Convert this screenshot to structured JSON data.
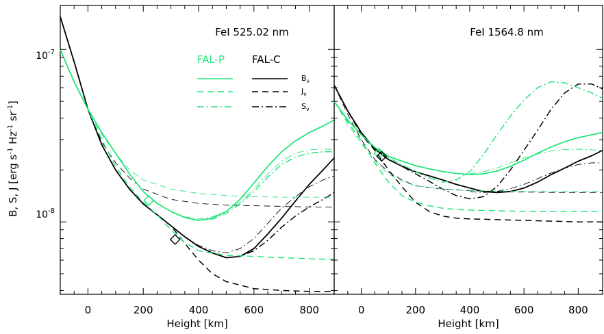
{
  "colors": {
    "fal_p": "#22e67a",
    "fal_c": "#000000"
  },
  "figure": {
    "ylabel_main": "B, S, J [erg s",
    "ylabel_exp1": "-1",
    "ylabel_mid": " Hz",
    "ylabel_exp2": "-1",
    "ylabel_mid2": " sr",
    "ylabel_exp3": "-1",
    "ylabel_end": "]"
  },
  "legend": {
    "fal_p": "FAL-P",
    "fal_c": "FAL-C",
    "b_nu": "B",
    "j_nu": "J",
    "s_nu": "S",
    "nu": "ν"
  },
  "chart_data": [
    {
      "type": "line",
      "title": "FeI 525.02 nm",
      "xlabel": "Height [km]",
      "xlim": [
        -100,
        890
      ],
      "xticks": [
        "0",
        "200",
        "400",
        "600",
        "800"
      ],
      "ylog": true,
      "ylim": [
        3.8e-09,
        1.8e-07
      ],
      "yticks": [
        {
          "base": "10",
          "exp": "-8"
        },
        {
          "base": "10",
          "exp": "-7"
        }
      ],
      "series": [
        {
          "name": "FAL-C B_nu",
          "model": "FAL-C",
          "style": "solid",
          "x": [
            -100,
            -50,
            0,
            50,
            100,
            150,
            200,
            250,
            300,
            350,
            400,
            450,
            500,
            550,
            600,
            650,
            700,
            750,
            800,
            850,
            890
          ],
          "y": [
            1.55e-07,
            8.5e-08,
            4.5e-08,
            2.8e-08,
            2e-08,
            1.55e-08,
            1.27e-08,
            1.1e-08,
            9.5e-09,
            8.2e-09,
            7.2e-09,
            6.6e-09,
            6.2e-09,
            6.3e-09,
            7e-09,
            8.5e-09,
            1.05e-08,
            1.32e-08,
            1.65e-08,
            2e-08,
            2.35e-08
          ]
        },
        {
          "name": "FAL-C J_nu thin",
          "model": "FAL-C",
          "style": "dashed-thin",
          "x": [
            -100,
            -50,
            0,
            50,
            100,
            150,
            200,
            300,
            400,
            500,
            600,
            700,
            800,
            890
          ],
          "y": [
            1.55e-07,
            8.5e-08,
            4.5e-08,
            2.9e-08,
            2.2e-08,
            1.8e-08,
            1.55e-08,
            1.35e-08,
            1.28e-08,
            1.25e-08,
            1.24e-08,
            1.23e-08,
            1.22e-08,
            1.22e-08
          ]
        },
        {
          "name": "FAL-C J_nu thick",
          "model": "FAL-C",
          "style": "dashed",
          "x": [
            -100,
            -50,
            0,
            50,
            100,
            150,
            200,
            250,
            300,
            350,
            400,
            450,
            500,
            600,
            700,
            800,
            890
          ],
          "y": [
            1.55e-07,
            8.5e-08,
            4.5e-08,
            2.8e-08,
            2e-08,
            1.55e-08,
            1.27e-08,
            1.1e-08,
            9.5e-09,
            7.5e-09,
            6e-09,
            5e-09,
            4.5e-09,
            4.1e-09,
            4e-09,
            3.95e-09,
            3.95e-09
          ]
        },
        {
          "name": "FAL-C S_nu thin",
          "model": "FAL-C",
          "style": "dashdot-thin",
          "x": [
            350,
            400,
            450,
            500,
            550,
            600,
            650,
            700,
            750,
            800,
            850,
            890
          ],
          "y": [
            8.2e-09,
            7.3e-09,
            6.8e-09,
            6.6e-09,
            7e-09,
            8e-09,
            9.8e-09,
            1.2e-08,
            1.4e-08,
            1.6e-08,
            1.75e-08,
            1.85e-08
          ]
        },
        {
          "name": "FAL-C S_nu thick",
          "model": "FAL-C",
          "style": "dashdot",
          "x": [
            350,
            400,
            450,
            500,
            550,
            600,
            650,
            700,
            750,
            800,
            850,
            890
          ],
          "y": [
            8.2e-09,
            7.2e-09,
            6.6e-09,
            6.2e-09,
            6.3e-09,
            6.8e-09,
            7.8e-09,
            9.3e-09,
            1.08e-08,
            1.22e-08,
            1.35e-08,
            1.48e-08
          ]
        },
        {
          "name": "FAL-P B_nu",
          "model": "FAL-P",
          "style": "solid",
          "x": [
            -100,
            -50,
            0,
            50,
            100,
            150,
            200,
            250,
            300,
            350,
            400,
            450,
            500,
            550,
            600,
            650,
            700,
            750,
            800,
            850,
            890
          ],
          "y": [
            1e-07,
            6.5e-08,
            4.5e-08,
            3.3e-08,
            2.5e-08,
            1.9e-08,
            1.5e-08,
            1.28e-08,
            1.15e-08,
            1.06e-08,
            1.02e-08,
            1.05e-08,
            1.15e-08,
            1.35e-08,
            1.68e-08,
            2.1e-08,
            2.55e-08,
            2.95e-08,
            3.3e-08,
            3.6e-08,
            3.9e-08
          ]
        },
        {
          "name": "FAL-P J_nu thin",
          "model": "FAL-P",
          "style": "dashed-thin",
          "x": [
            -100,
            -50,
            0,
            50,
            100,
            150,
            200,
            300,
            400,
            500,
            600,
            700,
            800,
            890
          ],
          "y": [
            1e-07,
            6.5e-08,
            4.5e-08,
            3.2e-08,
            2.5e-08,
            2e-08,
            1.75e-08,
            1.55e-08,
            1.46e-08,
            1.42e-08,
            1.4e-08,
            1.39e-08,
            1.39e-08,
            1.39e-08
          ]
        },
        {
          "name": "FAL-P J_nu thick",
          "model": "FAL-P",
          "style": "dashed",
          "x": [
            -100,
            -50,
            0,
            50,
            100,
            150,
            200,
            250,
            300,
            350,
            400,
            500,
            600,
            700,
            800,
            890
          ],
          "y": [
            1e-07,
            6.5e-08,
            4.5e-08,
            3e-08,
            2.1e-08,
            1.6e-08,
            1.3e-08,
            1.1e-08,
            9e-09,
            7.6e-09,
            6.8e-09,
            6.4e-09,
            6.3e-09,
            6.2e-09,
            6.1e-09,
            6.05e-09
          ]
        },
        {
          "name": "FAL-P S_nu thin",
          "model": "FAL-P",
          "style": "dashdot-thin",
          "x": [
            300,
            350,
            400,
            450,
            500,
            550,
            600,
            650,
            700,
            750,
            800,
            850,
            890
          ],
          "y": [
            1.15e-08,
            1.07e-08,
            1.04e-08,
            1.07e-08,
            1.15e-08,
            1.3e-08,
            1.55e-08,
            1.9e-08,
            2.25e-08,
            2.5e-08,
            2.62e-08,
            2.65e-08,
            2.62e-08
          ]
        },
        {
          "name": "FAL-P S_nu thick",
          "model": "FAL-P",
          "style": "dashdot",
          "x": [
            300,
            350,
            400,
            450,
            500,
            550,
            600,
            650,
            700,
            750,
            800,
            850,
            890
          ],
          "y": [
            1.15e-08,
            1.06e-08,
            1.02e-08,
            1.04e-08,
            1.12e-08,
            1.27e-08,
            1.5e-08,
            1.82e-08,
            2.15e-08,
            2.38e-08,
            2.5e-08,
            2.55e-08,
            2.55e-08
          ]
        }
      ],
      "markers": [
        {
          "model": "FAL-P",
          "x": 220,
          "y": 1.33e-08
        },
        {
          "model": "FAL-C",
          "x": 315,
          "y": 7.9e-09
        }
      ]
    },
    {
      "type": "line",
      "title": "FeI 1564.8 nm",
      "xlabel": "Height [km]",
      "xlim": [
        -100,
        890
      ],
      "xticks": [
        "0",
        "200",
        "400",
        "600",
        "800"
      ],
      "ylog": true,
      "ylim": [
        3.8e-09,
        1.8e-07
      ],
      "series": [
        {
          "name": "FAL-C B_nu",
          "model": "FAL-C",
          "style": "solid",
          "x": [
            -100,
            -50,
            0,
            50,
            100,
            150,
            200,
            250,
            300,
            350,
            400,
            450,
            500,
            550,
            600,
            650,
            700,
            750,
            800,
            850,
            890
          ],
          "y": [
            6.2e-08,
            4.4e-08,
            3.3e-08,
            2.65e-08,
            2.3e-08,
            2.1e-08,
            1.95e-08,
            1.85e-08,
            1.75e-08,
            1.65e-08,
            1.57e-08,
            1.5e-08,
            1.48e-08,
            1.5e-08,
            1.57e-08,
            1.7e-08,
            1.88e-08,
            2.05e-08,
            2.25e-08,
            2.42e-08,
            2.6e-08
          ]
        },
        {
          "name": "FAL-C J_nu thin",
          "model": "FAL-C",
          "style": "dashed-thin",
          "x": [
            -100,
            -50,
            0,
            50,
            100,
            150,
            200,
            300,
            400,
            500,
            600,
            700,
            800,
            890
          ],
          "y": [
            6.2e-08,
            4.2e-08,
            3e-08,
            2.3e-08,
            1.95e-08,
            1.75e-08,
            1.62e-08,
            1.55e-08,
            1.52e-08,
            1.5e-08,
            1.49e-08,
            1.48e-08,
            1.48e-08,
            1.48e-08
          ]
        },
        {
          "name": "FAL-C J_nu thick",
          "model": "FAL-C",
          "style": "dashed",
          "x": [
            -100,
            -50,
            0,
            50,
            100,
            150,
            200,
            250,
            300,
            350,
            400,
            500,
            600,
            700,
            800,
            890
          ],
          "y": [
            6.2e-08,
            4.4e-08,
            3.2e-08,
            2.6e-08,
            2e-08,
            1.6e-08,
            1.3e-08,
            1.15e-08,
            1.08e-08,
            1.05e-08,
            1.04e-08,
            1.03e-08,
            1.02e-08,
            1.01e-08,
            1e-08,
            1e-08
          ]
        },
        {
          "name": "FAL-C S_nu thin",
          "model": "FAL-C",
          "style": "dashdot-thin",
          "x": [
            400,
            450,
            500,
            550,
            600,
            650,
            700,
            750,
            800,
            850,
            890
          ],
          "y": [
            1.5e-08,
            1.48e-08,
            1.5e-08,
            1.56e-08,
            1.65e-08,
            1.78e-08,
            1.92e-08,
            2.05e-08,
            2.15e-08,
            2.2e-08,
            2.2e-08
          ]
        },
        {
          "name": "FAL-C S_nu thick",
          "model": "FAL-C",
          "style": "dashdot",
          "x": [
            -100,
            -50,
            0,
            50,
            100,
            150,
            200,
            250,
            300,
            350,
            400,
            450,
            500,
            550,
            600,
            650,
            700,
            750,
            800,
            850,
            890
          ],
          "y": [
            6.2e-08,
            4.4e-08,
            3.3e-08,
            2.65e-08,
            2.3e-08,
            2.1e-08,
            1.9e-08,
            1.72e-08,
            1.55e-08,
            1.42e-08,
            1.36e-08,
            1.4e-08,
            1.6e-08,
            2e-08,
            2.6e-08,
            3.4e-08,
            4.5e-08,
            5.6e-08,
            6.3e-08,
            6.3e-08,
            5.9e-08
          ]
        },
        {
          "name": "FAL-P B_nu",
          "model": "FAL-P",
          "style": "solid",
          "x": [
            -100,
            -50,
            0,
            50,
            100,
            150,
            200,
            250,
            300,
            350,
            400,
            450,
            500,
            550,
            600,
            650,
            700,
            750,
            800,
            850,
            890
          ],
          "y": [
            5e-08,
            3.9e-08,
            3.2e-08,
            2.7e-08,
            2.4e-08,
            2.25e-08,
            2.12e-08,
            2.03e-08,
            1.96e-08,
            1.91e-08,
            1.88e-08,
            1.9e-08,
            1.97e-08,
            2.1e-08,
            2.28e-08,
            2.5e-08,
            2.72e-08,
            2.92e-08,
            3.08e-08,
            3.2e-08,
            3.3e-08
          ]
        },
        {
          "name": "FAL-P J_nu thin",
          "model": "FAL-P",
          "style": "dashed-thin",
          "x": [
            -100,
            -50,
            0,
            50,
            100,
            150,
            200,
            300,
            400,
            500,
            600,
            700,
            800,
            890
          ],
          "y": [
            5e-08,
            3.7e-08,
            2.85e-08,
            2.25e-08,
            1.9e-08,
            1.72e-08,
            1.62e-08,
            1.55e-08,
            1.52e-08,
            1.51e-08,
            1.5e-08,
            1.5e-08,
            1.5e-08,
            1.5e-08
          ]
        },
        {
          "name": "FAL-P J_nu thick",
          "model": "FAL-P",
          "style": "dashed",
          "x": [
            -100,
            -50,
            0,
            50,
            100,
            150,
            200,
            250,
            300,
            350,
            400,
            500,
            600,
            700,
            800,
            890
          ],
          "y": [
            5e-08,
            3.8e-08,
            2.95e-08,
            2.2e-08,
            1.7e-08,
            1.42e-08,
            1.3e-08,
            1.24e-08,
            1.2e-08,
            1.18e-08,
            1.17e-08,
            1.16e-08,
            1.15e-08,
            1.15e-08,
            1.15e-08,
            1.15e-08
          ]
        },
        {
          "name": "FAL-P S_nu thin",
          "model": "FAL-P",
          "style": "dashdot-thin",
          "x": [
            400,
            450,
            500,
            550,
            600,
            650,
            700,
            750,
            800,
            850,
            890
          ],
          "y": [
            1.9e-08,
            1.95e-08,
            2.05e-08,
            2.2e-08,
            2.35e-08,
            2.48e-08,
            2.58e-08,
            2.63e-08,
            2.64e-08,
            2.62e-08,
            2.6e-08
          ]
        },
        {
          "name": "FAL-P S_nu thick",
          "model": "FAL-P",
          "style": "dashdot",
          "x": [
            -100,
            -50,
            0,
            50,
            100,
            150,
            200,
            250,
            300,
            350,
            400,
            450,
            500,
            550,
            600,
            650,
            700,
            750,
            800,
            850,
            890
          ],
          "y": [
            5e-08,
            3.9e-08,
            3.2e-08,
            2.7e-08,
            2.35e-08,
            2.15e-08,
            1.95e-08,
            1.8e-08,
            1.7e-08,
            1.75e-08,
            1.95e-08,
            2.45e-08,
            3.2e-08,
            4.1e-08,
            5.1e-08,
            6e-08,
            6.5e-08,
            6.4e-08,
            6e-08,
            5.6e-08,
            5.2e-08
          ]
        }
      ],
      "markers": [
        {
          "model": "FAL-P",
          "x": 65,
          "y": 2.5e-08
        },
        {
          "model": "FAL-C",
          "x": 75,
          "y": 2.4e-08
        }
      ]
    }
  ]
}
